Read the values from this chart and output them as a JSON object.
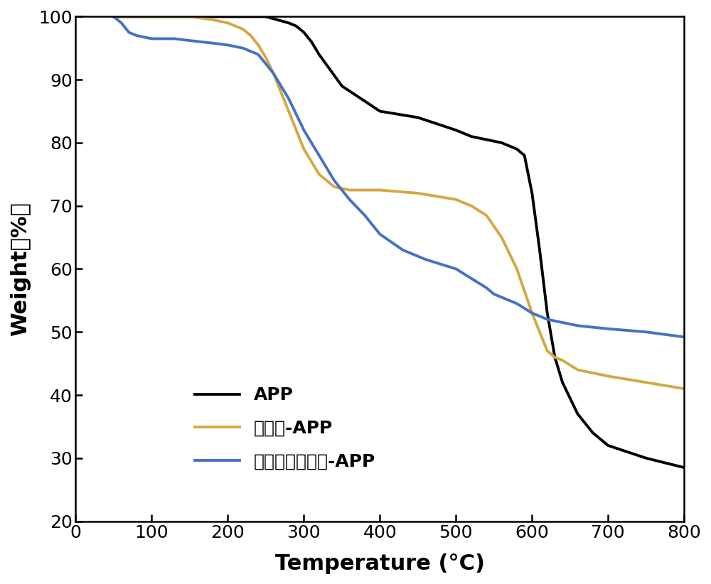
{
  "title": "",
  "xlabel": "Temperature (°C)",
  "ylabel": "Weight（%）",
  "xlim": [
    0,
    800
  ],
  "ylim": [
    20,
    100
  ],
  "xticks": [
    0,
    100,
    200,
    300,
    400,
    500,
    600,
    700,
    800
  ],
  "yticks": [
    20,
    30,
    40,
    50,
    60,
    70,
    80,
    90,
    100
  ],
  "background_color": "#ffffff",
  "line_width": 2.8,
  "curves": {
    "APP": {
      "color": "#000000",
      "x": [
        50,
        100,
        150,
        200,
        250,
        265,
        280,
        290,
        300,
        310,
        320,
        350,
        400,
        450,
        500,
        520,
        540,
        560,
        580,
        590,
        600,
        610,
        620,
        630,
        640,
        660,
        680,
        700,
        750,
        800
      ],
      "y": [
        100,
        100,
        100,
        100,
        100,
        99.5,
        99,
        98.5,
        97.5,
        96,
        94,
        89,
        85,
        84,
        82,
        81,
        80.5,
        80,
        79,
        78,
        72,
        63,
        53,
        46,
        42,
        37,
        34,
        32,
        30,
        28.5
      ]
    },
    "木质素-APP": {
      "color": "#D4A843",
      "x": [
        50,
        100,
        150,
        180,
        200,
        210,
        220,
        230,
        240,
        250,
        260,
        270,
        280,
        290,
        300,
        320,
        340,
        360,
        380,
        400,
        450,
        500,
        520,
        540,
        560,
        580,
        600,
        610,
        620,
        630,
        640,
        660,
        700,
        750,
        800
      ],
      "y": [
        100,
        100,
        100,
        99.5,
        99,
        98.5,
        98,
        97,
        95.5,
        93.5,
        91,
        88,
        85,
        82,
        79,
        75,
        73,
        72.5,
        72.5,
        72.5,
        72,
        71,
        70,
        68.5,
        65,
        60,
        53,
        50,
        47,
        46,
        45.5,
        44,
        43,
        42,
        41
      ]
    },
    "木质素离子液体-APP": {
      "color": "#4472C4",
      "x": [
        50,
        60,
        70,
        80,
        100,
        130,
        150,
        180,
        200,
        220,
        240,
        260,
        280,
        300,
        320,
        340,
        360,
        380,
        400,
        430,
        460,
        500,
        520,
        540,
        550,
        560,
        570,
        580,
        600,
        620,
        640,
        660,
        700,
        750,
        800
      ],
      "y": [
        100,
        99,
        97.5,
        97,
        96.5,
        96.5,
        96.2,
        95.8,
        95.5,
        95,
        94,
        91,
        87,
        82,
        78,
        74,
        71,
        68.5,
        65.5,
        63,
        61.5,
        60,
        58.5,
        57,
        56,
        55.5,
        55,
        54.5,
        53,
        52,
        51.5,
        51,
        50.5,
        50,
        49.2
      ]
    }
  },
  "legend_entries": [
    "APP",
    "木质素-APP",
    "木质素离子液体-APP"
  ],
  "legend_colors": [
    "#000000",
    "#D4A843",
    "#4472C4"
  ],
  "font_size_ticks": 18,
  "font_size_labels": 22,
  "font_size_legend": 18
}
